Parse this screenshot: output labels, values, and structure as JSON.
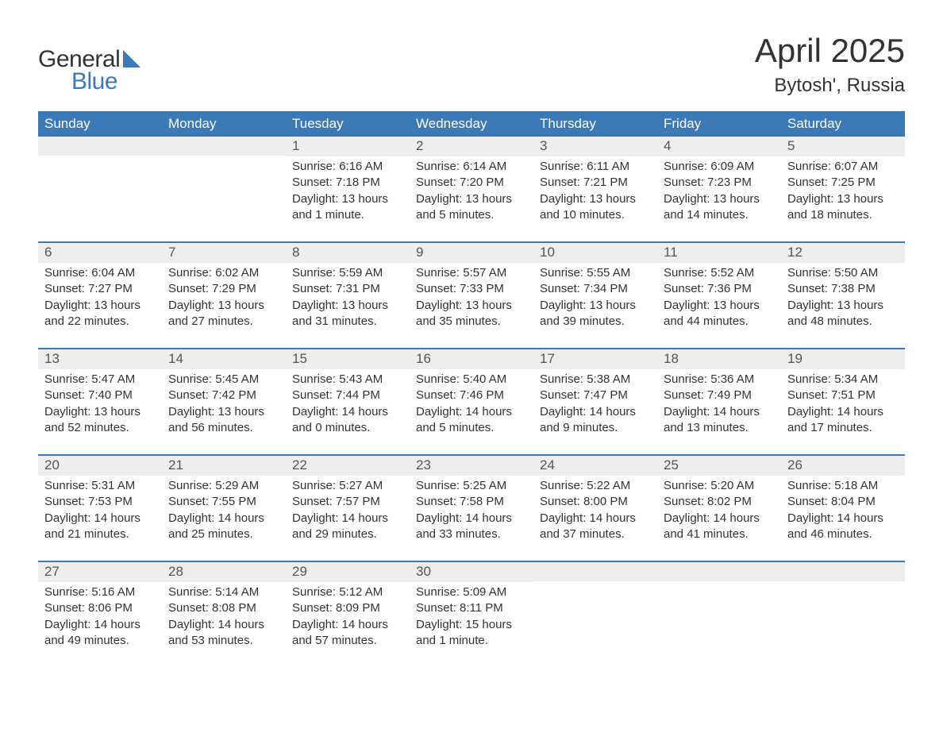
{
  "logo": {
    "general": "General",
    "blue": "Blue",
    "icon_color": "#3b79b7"
  },
  "title": "April 2025",
  "location": "Bytosh', Russia",
  "colors": {
    "header_bg": "#3b79b7",
    "header_text": "#ffffff",
    "daynum_bg": "#eeeeee",
    "border": "#3b79b7",
    "text": "#333333"
  },
  "typography": {
    "title_fontsize": 42,
    "location_fontsize": 24,
    "dayheader_fontsize": 17,
    "daynum_fontsize": 17,
    "body_fontsize": 15
  },
  "dayheaders": [
    "Sunday",
    "Monday",
    "Tuesday",
    "Wednesday",
    "Thursday",
    "Friday",
    "Saturday"
  ],
  "weeks": [
    [
      {
        "num": "",
        "sunrise": "",
        "sunset": "",
        "daylight1": "",
        "daylight2": ""
      },
      {
        "num": "",
        "sunrise": "",
        "sunset": "",
        "daylight1": "",
        "daylight2": ""
      },
      {
        "num": "1",
        "sunrise": "Sunrise: 6:16 AM",
        "sunset": "Sunset: 7:18 PM",
        "daylight1": "Daylight: 13 hours",
        "daylight2": "and 1 minute."
      },
      {
        "num": "2",
        "sunrise": "Sunrise: 6:14 AM",
        "sunset": "Sunset: 7:20 PM",
        "daylight1": "Daylight: 13 hours",
        "daylight2": "and 5 minutes."
      },
      {
        "num": "3",
        "sunrise": "Sunrise: 6:11 AM",
        "sunset": "Sunset: 7:21 PM",
        "daylight1": "Daylight: 13 hours",
        "daylight2": "and 10 minutes."
      },
      {
        "num": "4",
        "sunrise": "Sunrise: 6:09 AM",
        "sunset": "Sunset: 7:23 PM",
        "daylight1": "Daylight: 13 hours",
        "daylight2": "and 14 minutes."
      },
      {
        "num": "5",
        "sunrise": "Sunrise: 6:07 AM",
        "sunset": "Sunset: 7:25 PM",
        "daylight1": "Daylight: 13 hours",
        "daylight2": "and 18 minutes."
      }
    ],
    [
      {
        "num": "6",
        "sunrise": "Sunrise: 6:04 AM",
        "sunset": "Sunset: 7:27 PM",
        "daylight1": "Daylight: 13 hours",
        "daylight2": "and 22 minutes."
      },
      {
        "num": "7",
        "sunrise": "Sunrise: 6:02 AM",
        "sunset": "Sunset: 7:29 PM",
        "daylight1": "Daylight: 13 hours",
        "daylight2": "and 27 minutes."
      },
      {
        "num": "8",
        "sunrise": "Sunrise: 5:59 AM",
        "sunset": "Sunset: 7:31 PM",
        "daylight1": "Daylight: 13 hours",
        "daylight2": "and 31 minutes."
      },
      {
        "num": "9",
        "sunrise": "Sunrise: 5:57 AM",
        "sunset": "Sunset: 7:33 PM",
        "daylight1": "Daylight: 13 hours",
        "daylight2": "and 35 minutes."
      },
      {
        "num": "10",
        "sunrise": "Sunrise: 5:55 AM",
        "sunset": "Sunset: 7:34 PM",
        "daylight1": "Daylight: 13 hours",
        "daylight2": "and 39 minutes."
      },
      {
        "num": "11",
        "sunrise": "Sunrise: 5:52 AM",
        "sunset": "Sunset: 7:36 PM",
        "daylight1": "Daylight: 13 hours",
        "daylight2": "and 44 minutes."
      },
      {
        "num": "12",
        "sunrise": "Sunrise: 5:50 AM",
        "sunset": "Sunset: 7:38 PM",
        "daylight1": "Daylight: 13 hours",
        "daylight2": "and 48 minutes."
      }
    ],
    [
      {
        "num": "13",
        "sunrise": "Sunrise: 5:47 AM",
        "sunset": "Sunset: 7:40 PM",
        "daylight1": "Daylight: 13 hours",
        "daylight2": "and 52 minutes."
      },
      {
        "num": "14",
        "sunrise": "Sunrise: 5:45 AM",
        "sunset": "Sunset: 7:42 PM",
        "daylight1": "Daylight: 13 hours",
        "daylight2": "and 56 minutes."
      },
      {
        "num": "15",
        "sunrise": "Sunrise: 5:43 AM",
        "sunset": "Sunset: 7:44 PM",
        "daylight1": "Daylight: 14 hours",
        "daylight2": "and 0 minutes."
      },
      {
        "num": "16",
        "sunrise": "Sunrise: 5:40 AM",
        "sunset": "Sunset: 7:46 PM",
        "daylight1": "Daylight: 14 hours",
        "daylight2": "and 5 minutes."
      },
      {
        "num": "17",
        "sunrise": "Sunrise: 5:38 AM",
        "sunset": "Sunset: 7:47 PM",
        "daylight1": "Daylight: 14 hours",
        "daylight2": "and 9 minutes."
      },
      {
        "num": "18",
        "sunrise": "Sunrise: 5:36 AM",
        "sunset": "Sunset: 7:49 PM",
        "daylight1": "Daylight: 14 hours",
        "daylight2": "and 13 minutes."
      },
      {
        "num": "19",
        "sunrise": "Sunrise: 5:34 AM",
        "sunset": "Sunset: 7:51 PM",
        "daylight1": "Daylight: 14 hours",
        "daylight2": "and 17 minutes."
      }
    ],
    [
      {
        "num": "20",
        "sunrise": "Sunrise: 5:31 AM",
        "sunset": "Sunset: 7:53 PM",
        "daylight1": "Daylight: 14 hours",
        "daylight2": "and 21 minutes."
      },
      {
        "num": "21",
        "sunrise": "Sunrise: 5:29 AM",
        "sunset": "Sunset: 7:55 PM",
        "daylight1": "Daylight: 14 hours",
        "daylight2": "and 25 minutes."
      },
      {
        "num": "22",
        "sunrise": "Sunrise: 5:27 AM",
        "sunset": "Sunset: 7:57 PM",
        "daylight1": "Daylight: 14 hours",
        "daylight2": "and 29 minutes."
      },
      {
        "num": "23",
        "sunrise": "Sunrise: 5:25 AM",
        "sunset": "Sunset: 7:58 PM",
        "daylight1": "Daylight: 14 hours",
        "daylight2": "and 33 minutes."
      },
      {
        "num": "24",
        "sunrise": "Sunrise: 5:22 AM",
        "sunset": "Sunset: 8:00 PM",
        "daylight1": "Daylight: 14 hours",
        "daylight2": "and 37 minutes."
      },
      {
        "num": "25",
        "sunrise": "Sunrise: 5:20 AM",
        "sunset": "Sunset: 8:02 PM",
        "daylight1": "Daylight: 14 hours",
        "daylight2": "and 41 minutes."
      },
      {
        "num": "26",
        "sunrise": "Sunrise: 5:18 AM",
        "sunset": "Sunset: 8:04 PM",
        "daylight1": "Daylight: 14 hours",
        "daylight2": "and 46 minutes."
      }
    ],
    [
      {
        "num": "27",
        "sunrise": "Sunrise: 5:16 AM",
        "sunset": "Sunset: 8:06 PM",
        "daylight1": "Daylight: 14 hours",
        "daylight2": "and 49 minutes."
      },
      {
        "num": "28",
        "sunrise": "Sunrise: 5:14 AM",
        "sunset": "Sunset: 8:08 PM",
        "daylight1": "Daylight: 14 hours",
        "daylight2": "and 53 minutes."
      },
      {
        "num": "29",
        "sunrise": "Sunrise: 5:12 AM",
        "sunset": "Sunset: 8:09 PM",
        "daylight1": "Daylight: 14 hours",
        "daylight2": "and 57 minutes."
      },
      {
        "num": "30",
        "sunrise": "Sunrise: 5:09 AM",
        "sunset": "Sunset: 8:11 PM",
        "daylight1": "Daylight: 15 hours",
        "daylight2": "and 1 minute."
      },
      {
        "num": "",
        "sunrise": "",
        "sunset": "",
        "daylight1": "",
        "daylight2": ""
      },
      {
        "num": "",
        "sunrise": "",
        "sunset": "",
        "daylight1": "",
        "daylight2": ""
      },
      {
        "num": "",
        "sunrise": "",
        "sunset": "",
        "daylight1": "",
        "daylight2": ""
      }
    ]
  ]
}
